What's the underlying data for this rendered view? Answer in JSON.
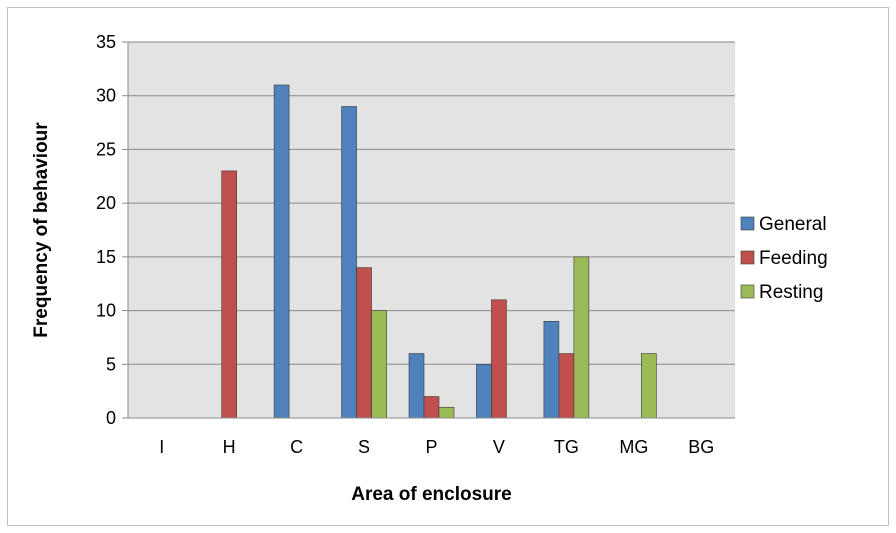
{
  "chart_data": {
    "type": "bar",
    "title": "",
    "xlabel": "Area of enclosure",
    "ylabel": "Frequency of behaviour",
    "categories": [
      "I",
      "H",
      "C",
      "S",
      "P",
      "V",
      "TG",
      "MG",
      "BG"
    ],
    "series": [
      {
        "name": "General",
        "color": "#4f81bd",
        "values": [
          0,
          0,
          31,
          29,
          6,
          5,
          9,
          0,
          0
        ]
      },
      {
        "name": "Feeding",
        "color": "#c0504d",
        "values": [
          0,
          23,
          0,
          14,
          2,
          11,
          6,
          0,
          0
        ]
      },
      {
        "name": "Resting",
        "color": "#9bbb59",
        "values": [
          0,
          0,
          0,
          10,
          1,
          0,
          15,
          6,
          0
        ]
      }
    ],
    "ylim": [
      0,
      35
    ],
    "yticks": [
      "0",
      "5",
      "10",
      "15",
      "20",
      "25",
      "30",
      "35"
    ],
    "grid": true,
    "legend_position": "right",
    "plot_background": "#e3e3e3"
  }
}
